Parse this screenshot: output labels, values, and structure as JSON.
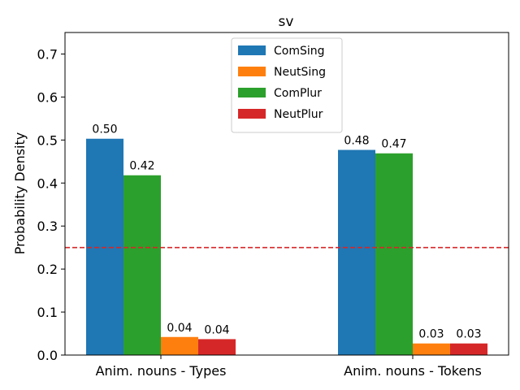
{
  "chart_data": {
    "type": "bar",
    "title": "sv",
    "xlabel": "",
    "ylabel": "Probability Density",
    "ylim": [
      0,
      0.75
    ],
    "yticks": [
      0.0,
      0.1,
      0.2,
      0.3,
      0.4,
      0.5,
      0.6,
      0.7
    ],
    "ytick_labels": [
      "0.0",
      "0.1",
      "0.2",
      "0.3",
      "0.4",
      "0.5",
      "0.6",
      "0.7"
    ],
    "categories": [
      "Anim. nouns - Types",
      "Anim. nouns - Tokens"
    ],
    "series": [
      {
        "name": "ComSing",
        "color": "#1f77b4",
        "values": [
          0.503,
          0.477
        ],
        "labels": [
          "0.50",
          "0.48"
        ]
      },
      {
        "name": "NeutSing",
        "color": "#ff7f0e",
        "values": [
          0.042,
          0.027
        ],
        "labels": [
          "0.04",
          "0.03"
        ]
      },
      {
        "name": "ComPlur",
        "color": "#2ca02c",
        "values": [
          0.418,
          0.469
        ],
        "labels": [
          "0.42",
          "0.47"
        ]
      },
      {
        "name": "NeutPlur",
        "color": "#d62728",
        "values": [
          0.037,
          0.027
        ],
        "labels": [
          "0.04",
          "0.03"
        ]
      }
    ],
    "bar_order": [
      "ComSing",
      "ComPlur",
      "NeutSing",
      "NeutPlur"
    ],
    "reference_line": {
      "y": 0.25,
      "color": "#d62728",
      "style": "dashed"
    },
    "legend": {
      "placement": "top-center"
    },
    "grid": false
  }
}
